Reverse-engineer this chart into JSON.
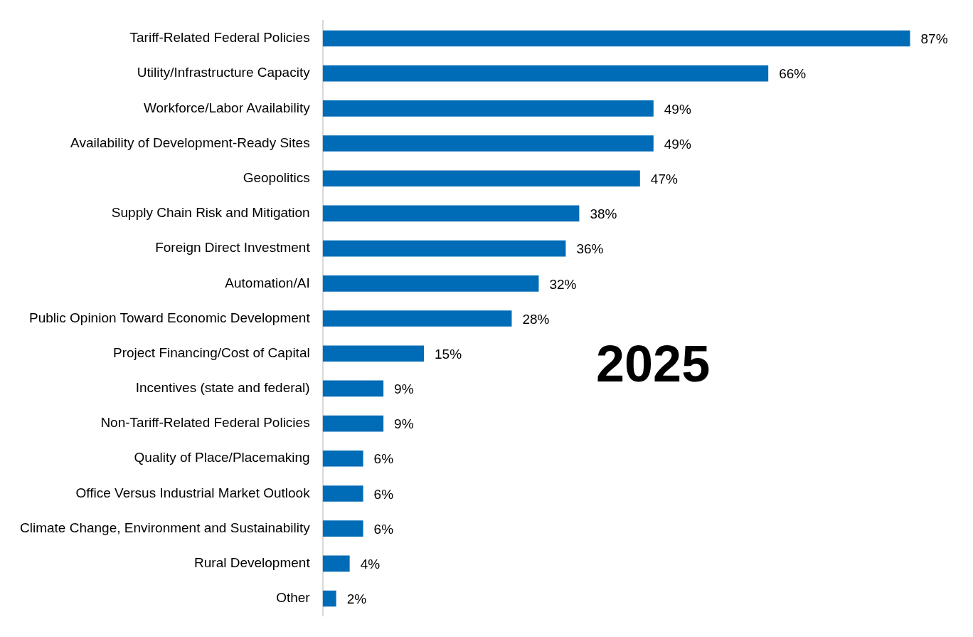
{
  "chart_data": {
    "type": "bar",
    "orientation": "horizontal",
    "categories": [
      "Tariff-Related Federal Policies",
      "Utility/Infrastructure Capacity",
      "Workforce/Labor Availability",
      "Availability of Development-Ready Sites",
      "Geopolitics",
      "Supply Chain Risk and Mitigation",
      "Foreign Direct Investment",
      "Automation/AI",
      "Public Opinion Toward Economic Development",
      "Project Financing/Cost of Capital",
      "Incentives (state and federal)",
      "Non-Tariff-Related Federal Policies",
      "Quality of Place/Placemaking",
      "Office Versus Industrial Market Outlook",
      "Climate Change, Environment and Sustainability",
      "Rural Development",
      "Other"
    ],
    "values": [
      87,
      66,
      49,
      49,
      47,
      38,
      36,
      32,
      28,
      15,
      9,
      9,
      6,
      6,
      6,
      4,
      2
    ],
    "value_labels": [
      "87%",
      "66%",
      "49%",
      "49%",
      "47%",
      "38%",
      "36%",
      "32%",
      "28%",
      "15%",
      "9%",
      "9%",
      "6%",
      "6%",
      "6%",
      "4%",
      "2%"
    ],
    "color": "#006bb6",
    "annotations": [
      "2025"
    ],
    "legend": false
  }
}
